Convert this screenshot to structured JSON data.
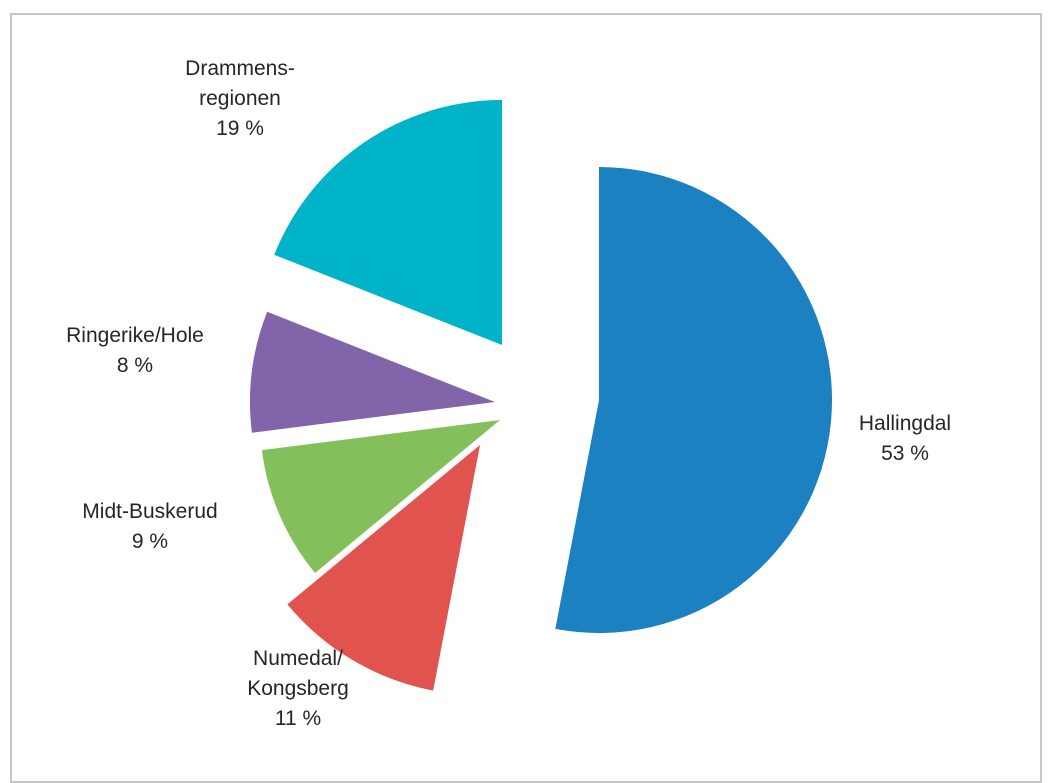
{
  "chart_data": {
    "type": "pie",
    "exploded": true,
    "start_angle_deg": 0,
    "direction": "clockwise",
    "slices": [
      {
        "label_lines": [
          "Hallingdal"
        ],
        "percent_label": "53 %",
        "value": 53,
        "color": "#1b81c1"
      },
      {
        "label_lines": [
          "Numedal/",
          "Kongsberg"
        ],
        "percent_label": "11 %",
        "value": 11,
        "color": "#e0534f"
      },
      {
        "label_lines": [
          "Midt-Buskerud"
        ],
        "percent_label": "9 %",
        "value": 9,
        "color": "#83c05b"
      },
      {
        "label_lines": [
          "Ringerike/Hole"
        ],
        "percent_label": "8 %",
        "value": 8,
        "color": "#8264aa"
      },
      {
        "label_lines": [
          "Drammens-",
          "regionen"
        ],
        "percent_label": "19 %",
        "value": 19,
        "color": "#00b3c8"
      }
    ]
  }
}
